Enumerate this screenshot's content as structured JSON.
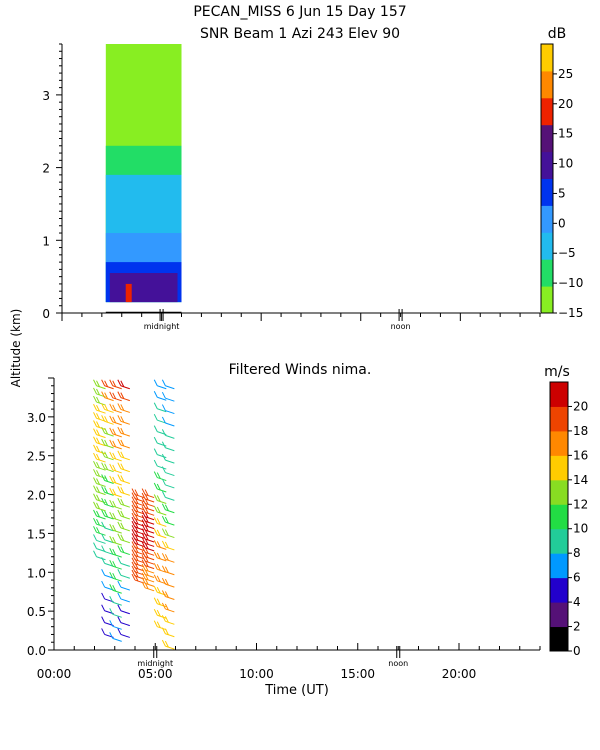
{
  "page": {
    "title_line1": "PECAN_MISS    6 Jun 15 Day 157",
    "shared_ylabel": "Altitude (km)"
  },
  "chart_data": [
    {
      "type": "heatmap",
      "title": "SNR Beam 1 Azi 243 Elev 90",
      "xlim": [
        0,
        24
      ],
      "ylim": [
        0,
        3.7
      ],
      "y_ticks": [
        0,
        1,
        2,
        3
      ],
      "x_markers": [
        {
          "label": "midnight",
          "x": 5
        },
        {
          "label": "noon",
          "x": 17
        }
      ],
      "colorbar": {
        "unit": "dB",
        "min": -15,
        "max": 30,
        "ticks": [
          -15,
          -10,
          -5,
          0,
          5,
          10,
          15,
          20,
          25
        ],
        "colors": [
          "#88ee22",
          "#22dd66",
          "#22bbee",
          "#3399ff",
          "#0033ee",
          "#441199",
          "#551177",
          "#ee2200",
          "#ff8800",
          "#ffcc00"
        ]
      },
      "data_extent": {
        "x": [
          2.2,
          6.0
        ],
        "y": [
          0.15,
          3.7
        ]
      },
      "layers": [
        {
          "snr_db": 17,
          "x": [
            3.2,
            3.5
          ],
          "y": [
            0.15,
            0.4
          ]
        },
        {
          "snr_db": 9,
          "x": [
            2.4,
            5.8
          ],
          "y": [
            0.15,
            0.55
          ]
        },
        {
          "snr_db": 4,
          "x": [
            2.2,
            6.0
          ],
          "y": [
            0.15,
            0.7
          ]
        },
        {
          "snr_db": 1,
          "x": [
            2.2,
            6.0
          ],
          "y": [
            0.15,
            1.1
          ]
        },
        {
          "snr_db": -4,
          "x": [
            2.2,
            6.0
          ],
          "y": [
            0.15,
            1.9
          ]
        },
        {
          "snr_db": -9,
          "x": [
            2.2,
            6.0
          ],
          "y": [
            0.15,
            2.3
          ]
        },
        {
          "snr_db": -13,
          "x": [
            2.2,
            6.0
          ],
          "y": [
            0.15,
            3.7
          ]
        }
      ]
    },
    {
      "type": "wind_barbs",
      "title": "Filtered Winds nima.",
      "xlabel": "Time (UT)",
      "xlim": [
        0,
        24
      ],
      "ylim": [
        0,
        3.5
      ],
      "x_ticks": [
        0,
        5,
        10,
        15,
        20
      ],
      "x_tick_labels": [
        "00:00",
        "05:00",
        "10:00",
        "15:00",
        "20:00"
      ],
      "y_ticks": [
        0,
        0.5,
        1,
        1.5,
        2,
        2.5,
        3
      ],
      "y_tick_labels": [
        "0.0",
        "0.5",
        "1.0",
        "1.5",
        "2.0",
        "2.5",
        "3.0"
      ],
      "x_markers": [
        {
          "label": "midnight",
          "x": 5
        },
        {
          "label": "noon",
          "x": 17
        }
      ],
      "colorbar": {
        "unit": "m/s",
        "min": 0,
        "max": 22,
        "ticks": [
          0,
          2,
          4,
          6,
          8,
          10,
          12,
          14,
          16,
          18,
          20
        ],
        "colors": [
          "#000000",
          "#551177",
          "#2200cc",
          "#0099ff",
          "#22cc99",
          "#22dd44",
          "#88dd22",
          "#ffcc00",
          "#ff8800",
          "#ee4400",
          "#cc0000"
        ]
      },
      "columns": [
        {
          "x": 2.1,
          "y_range": [
            1.2,
            3.4
          ],
          "speeds_bottom_to_top": [
            8,
            10,
            12,
            13,
            14,
            15,
            14,
            13
          ]
        },
        {
          "x": 2.5,
          "y_range": [
            0.2,
            3.4
          ],
          "speeds_bottom_to_top": [
            4,
            5,
            6,
            8,
            9,
            10,
            11,
            12,
            12,
            14,
            16,
            18
          ]
        },
        {
          "x": 2.9,
          "y_range": [
            0.15,
            3.4
          ],
          "speeds_bottom_to_top": [
            6,
            8,
            10,
            11,
            12,
            13,
            14,
            15,
            16,
            17,
            18,
            19
          ]
        },
        {
          "x": 3.3,
          "y_range": [
            0.2,
            3.4
          ],
          "speeds_bottom_to_top": [
            4,
            5,
            7,
            9,
            12,
            13,
            14,
            15,
            16,
            17,
            18,
            20
          ]
        },
        {
          "x": 4.0,
          "y_range": [
            0.9,
            2.0
          ],
          "speeds_bottom_to_top": [
            18,
            19,
            20,
            21,
            19,
            18
          ]
        },
        {
          "x": 4.5,
          "y_range": [
            0.8,
            2.0
          ],
          "speeds_bottom_to_top": [
            17,
            18,
            20,
            21,
            20,
            19
          ]
        },
        {
          "x": 5.1,
          "y_range": [
            0.3,
            3.4
          ],
          "speeds_bottom_to_top": [
            14,
            15,
            16,
            17,
            16,
            14,
            12,
            10,
            9,
            8,
            8,
            7
          ]
        },
        {
          "x": 5.5,
          "y_range": [
            0.05,
            3.4
          ],
          "speeds_bottom_to_top": [
            14,
            15,
            17,
            18,
            15,
            12,
            10,
            9,
            8,
            8,
            7,
            7
          ]
        }
      ]
    }
  ]
}
